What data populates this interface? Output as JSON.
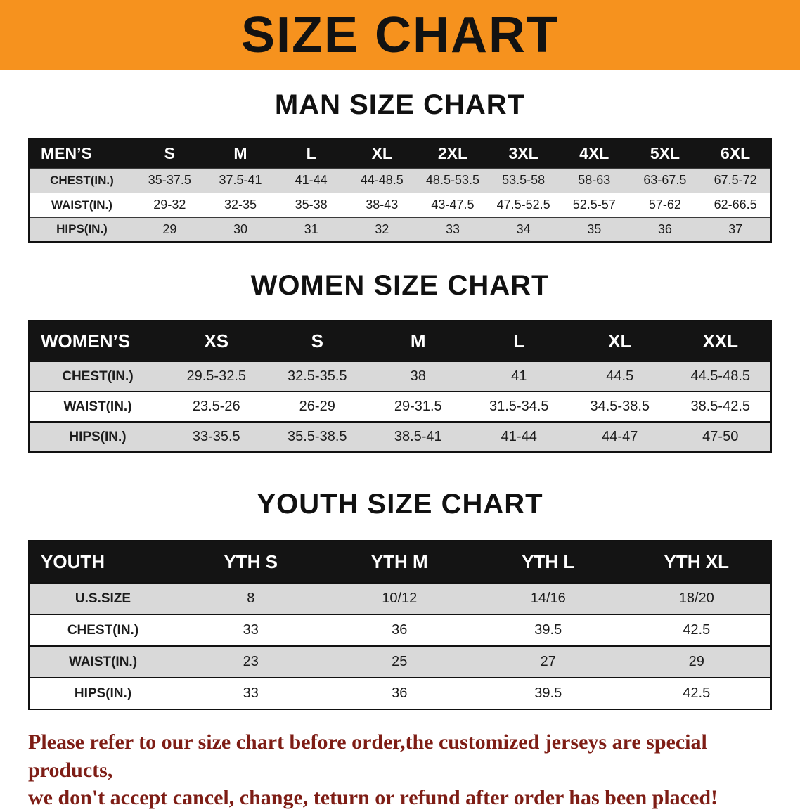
{
  "banner": {
    "title": "SIZE CHART",
    "bg_color": "#f6921e"
  },
  "colors": {
    "header_bar": "#141414",
    "stripe": "#d9d9d9",
    "note_text": "#7e1d15"
  },
  "sections": [
    {
      "title": "MAN SIZE CHART",
      "table": {
        "header": [
          "MEN’S",
          "S",
          "M",
          "L",
          "XL",
          "2XL",
          "3XL",
          "4XL",
          "5XL",
          "6XL"
        ],
        "rows": [
          [
            "CHEST(IN.)",
            "35-37.5",
            "37.5-41",
            "41-44",
            "44-48.5",
            "48.5-53.5",
            "53.5-58",
            "58-63",
            "63-67.5",
            "67.5-72"
          ],
          [
            "WAIST(IN.)",
            "29-32",
            "32-35",
            "35-38",
            "38-43",
            "43-47.5",
            "47.5-52.5",
            "52.5-57",
            "57-62",
            "62-66.5"
          ],
          [
            "HIPS(IN.)",
            "29",
            "30",
            "31",
            "32",
            "33",
            "34",
            "35",
            "36",
            "37"
          ]
        ]
      }
    },
    {
      "title": "WOMEN SIZE CHART",
      "table": {
        "header": [
          "WOMEN’S",
          "XS",
          "S",
          "M",
          "L",
          "XL",
          "XXL"
        ],
        "rows": [
          [
            "CHEST(IN.)",
            "29.5-32.5",
            "32.5-35.5",
            "38",
            "41",
            "44.5",
            "44.5-48.5"
          ],
          [
            "WAIST(IN.)",
            "23.5-26",
            "26-29",
            "29-31.5",
            "31.5-34.5",
            "34.5-38.5",
            "38.5-42.5"
          ],
          [
            "HIPS(IN.)",
            "33-35.5",
            "35.5-38.5",
            "38.5-41",
            "41-44",
            "44-47",
            "47-50"
          ]
        ]
      }
    },
    {
      "title": "YOUTH SIZE CHART",
      "table": {
        "header": [
          "YOUTH",
          "YTH S",
          "YTH M",
          "YTH L",
          "YTH XL"
        ],
        "rows": [
          [
            "U.S.SIZE",
            "8",
            "10/12",
            "14/16",
            "18/20"
          ],
          [
            "CHEST(IN.)",
            "33",
            "36",
            "39.5",
            "42.5"
          ],
          [
            "WAIST(IN.)",
            "23",
            "25",
            "27",
            "29"
          ],
          [
            "HIPS(IN.)",
            "33",
            "36",
            "39.5",
            "42.5"
          ]
        ]
      }
    }
  ],
  "footer": {
    "line1": "Please refer to our size chart before order,the customized jerseys are special products,",
    "line2": "we don't accept cancel, change, teturn or refund after order has been placed!"
  }
}
